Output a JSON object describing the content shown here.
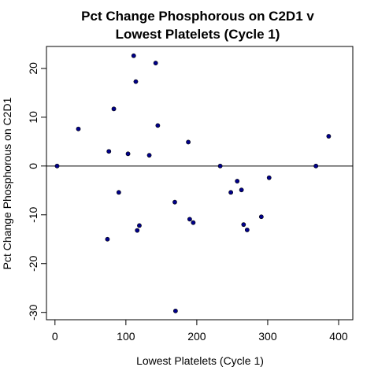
{
  "chart_data": {
    "type": "scatter",
    "title_line1": "Pct Change Phosphorous on C2D1 v",
    "title_line2": "Lowest Platelets (Cycle 1)",
    "xlabel": "Lowest Platelets (Cycle 1)",
    "ylabel": "Pct Change Phosphorous on C2D1",
    "xlim": [
      -12,
      420
    ],
    "ylim": [
      -31.5,
      24.5
    ],
    "x_ticks": [
      0,
      100,
      200,
      300,
      400
    ],
    "y_ticks": [
      -30,
      -20,
      -10,
      0,
      10,
      20
    ],
    "reference_line_y": 0,
    "point_color": "#00008B",
    "grid": false,
    "points": [
      {
        "x": 3,
        "y": 0.0
      },
      {
        "x": 33,
        "y": 7.6
      },
      {
        "x": 74,
        "y": -15.0
      },
      {
        "x": 76,
        "y": 3.0
      },
      {
        "x": 83,
        "y": 11.7
      },
      {
        "x": 90,
        "y": -5.4
      },
      {
        "x": 103,
        "y": 2.5
      },
      {
        "x": 111,
        "y": 22.6
      },
      {
        "x": 114,
        "y": 17.3
      },
      {
        "x": 116,
        "y": -13.2
      },
      {
        "x": 119,
        "y": -12.2
      },
      {
        "x": 133,
        "y": 2.2
      },
      {
        "x": 142,
        "y": 21.1
      },
      {
        "x": 145,
        "y": 8.3
      },
      {
        "x": 169,
        "y": -7.4
      },
      {
        "x": 170,
        "y": -29.7
      },
      {
        "x": 188,
        "y": 4.9
      },
      {
        "x": 190,
        "y": -10.9
      },
      {
        "x": 195,
        "y": -11.6
      },
      {
        "x": 233,
        "y": 0.0
      },
      {
        "x": 248,
        "y": -5.4
      },
      {
        "x": 257,
        "y": -3.1
      },
      {
        "x": 263,
        "y": -4.9
      },
      {
        "x": 266,
        "y": -12.0
      },
      {
        "x": 271,
        "y": -13.1
      },
      {
        "x": 291,
        "y": -10.4
      },
      {
        "x": 302,
        "y": -2.4
      },
      {
        "x": 368,
        "y": 0.0
      },
      {
        "x": 386,
        "y": 6.1
      }
    ]
  }
}
